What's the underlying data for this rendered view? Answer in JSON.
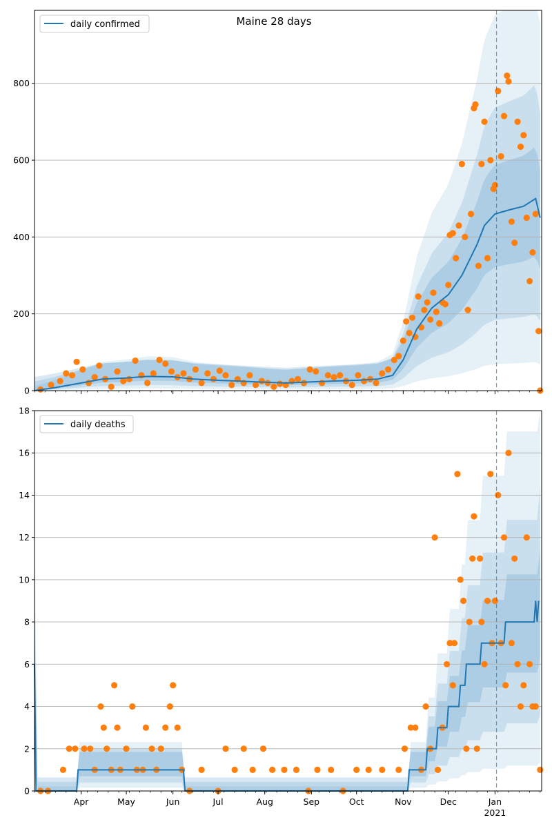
{
  "chart_data": [
    {
      "type": "line",
      "title": "Maine 28 days",
      "legend": {
        "label": "daily confirmed",
        "position": "top-left"
      },
      "ylim": [
        0,
        990
      ],
      "yticks": [
        0,
        200,
        400,
        600,
        800
      ],
      "grid": "horizontal",
      "vline_date": "2021-01-02",
      "series": [
        {
          "name": "daily confirmed",
          "kind": "line",
          "points": [
            [
              "2020-03-01",
              0
            ],
            [
              "2020-03-15",
              8
            ],
            [
              "2020-04-01",
              20
            ],
            [
              "2020-04-15",
              30
            ],
            [
              "2020-05-01",
              33
            ],
            [
              "2020-05-15",
              37
            ],
            [
              "2020-06-01",
              36
            ],
            [
              "2020-06-15",
              30
            ],
            [
              "2020-07-01",
              27
            ],
            [
              "2020-07-15",
              25
            ],
            [
              "2020-08-01",
              22
            ],
            [
              "2020-08-15",
              20
            ],
            [
              "2020-09-01",
              23
            ],
            [
              "2020-09-15",
              25
            ],
            [
              "2020-10-01",
              27
            ],
            [
              "2020-10-15",
              30
            ],
            [
              "2020-10-25",
              40
            ],
            [
              "2020-11-01",
              80
            ],
            [
              "2020-11-10",
              160
            ],
            [
              "2020-11-20",
              215
            ],
            [
              "2020-12-01",
              250
            ],
            [
              "2020-12-10",
              300
            ],
            [
              "2020-12-20",
              380
            ],
            [
              "2020-12-25",
              430
            ],
            [
              "2021-01-01",
              460
            ],
            [
              "2021-01-10",
              470
            ],
            [
              "2021-01-20",
              480
            ],
            [
              "2021-01-28",
              500
            ],
            [
              "2021-01-31",
              450
            ]
          ]
        }
      ],
      "scatter": [
        [
          "2020-03-05",
          3
        ],
        [
          "2020-03-12",
          15
        ],
        [
          "2020-03-18",
          25
        ],
        [
          "2020-03-22",
          45
        ],
        [
          "2020-03-26",
          40
        ],
        [
          "2020-03-29",
          75
        ],
        [
          "2020-04-02",
          55
        ],
        [
          "2020-04-06",
          20
        ],
        [
          "2020-04-10",
          35
        ],
        [
          "2020-04-13",
          65
        ],
        [
          "2020-04-17",
          30
        ],
        [
          "2020-04-21",
          10
        ],
        [
          "2020-04-25",
          50
        ],
        [
          "2020-04-29",
          25
        ],
        [
          "2020-05-03",
          30
        ],
        [
          "2020-05-07",
          78
        ],
        [
          "2020-05-11",
          40
        ],
        [
          "2020-05-15",
          20
        ],
        [
          "2020-05-19",
          45
        ],
        [
          "2020-05-23",
          80
        ],
        [
          "2020-05-27",
          70
        ],
        [
          "2020-05-31",
          50
        ],
        [
          "2020-06-04",
          35
        ],
        [
          "2020-06-08",
          45
        ],
        [
          "2020-06-12",
          30
        ],
        [
          "2020-06-16",
          55
        ],
        [
          "2020-06-20",
          20
        ],
        [
          "2020-06-24",
          45
        ],
        [
          "2020-06-28",
          30
        ],
        [
          "2020-07-02",
          52
        ],
        [
          "2020-07-06",
          40
        ],
        [
          "2020-07-10",
          15
        ],
        [
          "2020-07-14",
          30
        ],
        [
          "2020-07-18",
          20
        ],
        [
          "2020-07-22",
          40
        ],
        [
          "2020-07-26",
          15
        ],
        [
          "2020-07-30",
          25
        ],
        [
          "2020-08-03",
          20
        ],
        [
          "2020-08-07",
          10
        ],
        [
          "2020-08-11",
          18
        ],
        [
          "2020-08-15",
          15
        ],
        [
          "2020-08-19",
          25
        ],
        [
          "2020-08-23",
          30
        ],
        [
          "2020-08-27",
          20
        ],
        [
          "2020-08-31",
          55
        ],
        [
          "2020-09-04",
          50
        ],
        [
          "2020-09-08",
          20
        ],
        [
          "2020-09-12",
          40
        ],
        [
          "2020-09-16",
          35
        ],
        [
          "2020-09-20",
          40
        ],
        [
          "2020-09-24",
          25
        ],
        [
          "2020-09-28",
          15
        ],
        [
          "2020-10-02",
          40
        ],
        [
          "2020-10-06",
          25
        ],
        [
          "2020-10-10",
          30
        ],
        [
          "2020-10-14",
          20
        ],
        [
          "2020-10-18",
          45
        ],
        [
          "2020-10-22",
          55
        ],
        [
          "2020-10-26",
          80
        ],
        [
          "2020-10-29",
          90
        ],
        [
          "2020-11-01",
          130
        ],
        [
          "2020-11-03",
          180
        ],
        [
          "2020-11-05",
          150
        ],
        [
          "2020-11-07",
          190
        ],
        [
          "2020-11-09",
          140
        ],
        [
          "2020-11-11",
          245
        ],
        [
          "2020-11-13",
          165
        ],
        [
          "2020-11-15",
          210
        ],
        [
          "2020-11-17",
          230
        ],
        [
          "2020-11-19",
          185
        ],
        [
          "2020-11-21",
          255
        ],
        [
          "2020-11-23",
          205
        ],
        [
          "2020-11-25",
          175
        ],
        [
          "2020-11-27",
          230
        ],
        [
          "2020-11-29",
          225
        ],
        [
          "2020-12-01",
          275
        ],
        [
          "2020-12-02",
          405
        ],
        [
          "2020-12-04",
          410
        ],
        [
          "2020-12-06",
          345
        ],
        [
          "2020-12-08",
          430
        ],
        [
          "2020-12-10",
          590
        ],
        [
          "2020-12-12",
          400
        ],
        [
          "2020-12-14",
          210
        ],
        [
          "2020-12-16",
          460
        ],
        [
          "2020-12-18",
          735
        ],
        [
          "2020-12-19",
          745
        ],
        [
          "2020-12-21",
          325
        ],
        [
          "2020-12-23",
          590
        ],
        [
          "2020-12-25",
          700
        ],
        [
          "2020-12-27",
          345
        ],
        [
          "2020-12-29",
          600
        ],
        [
          "2020-12-31",
          525
        ],
        [
          "2021-01-01",
          535
        ],
        [
          "2021-01-03",
          780
        ],
        [
          "2021-01-05",
          610
        ],
        [
          "2021-01-07",
          715
        ],
        [
          "2021-01-09",
          820
        ],
        [
          "2021-01-10",
          805
        ],
        [
          "2021-01-12",
          440
        ],
        [
          "2021-01-14",
          385
        ],
        [
          "2021-01-16",
          700
        ],
        [
          "2021-01-18",
          635
        ],
        [
          "2021-01-20",
          665
        ],
        [
          "2021-01-22",
          450
        ],
        [
          "2021-01-24",
          285
        ],
        [
          "2021-01-26",
          360
        ],
        [
          "2021-01-28",
          460
        ],
        [
          "2021-01-30",
          155
        ],
        [
          "2021-01-31",
          0
        ]
      ]
    },
    {
      "type": "line",
      "legend": {
        "label": "daily deaths",
        "position": "top-left"
      },
      "ylim": [
        0,
        18
      ],
      "yticks": [
        0,
        2,
        4,
        6,
        8,
        10,
        12,
        14,
        16,
        18
      ],
      "grid": "horizontal",
      "vline_date": "2021-01-02",
      "series": [
        {
          "name": "daily deaths",
          "kind": "step",
          "points": [
            [
              "2020-03-01",
              6
            ],
            [
              "2020-03-02",
              0
            ],
            [
              "2020-03-29",
              0
            ],
            [
              "2020-03-30",
              1
            ],
            [
              "2020-06-08",
              1
            ],
            [
              "2020-06-09",
              0
            ],
            [
              "2020-11-04",
              0
            ],
            [
              "2020-11-05",
              1
            ],
            [
              "2020-11-16",
              1
            ],
            [
              "2020-11-17",
              2
            ],
            [
              "2020-11-23",
              2
            ],
            [
              "2020-11-24",
              3
            ],
            [
              "2020-11-30",
              3
            ],
            [
              "2020-12-01",
              4
            ],
            [
              "2020-12-08",
              4
            ],
            [
              "2020-12-09",
              5
            ],
            [
              "2020-12-12",
              5
            ],
            [
              "2020-12-13",
              6
            ],
            [
              "2020-12-22",
              6
            ],
            [
              "2020-12-23",
              7
            ],
            [
              "2021-01-07",
              7
            ],
            [
              "2021-01-08",
              8
            ],
            [
              "2021-01-27",
              8
            ],
            [
              "2021-01-28",
              9
            ],
            [
              "2021-01-29",
              8
            ],
            [
              "2021-01-30",
              9
            ]
          ]
        }
      ],
      "scatter": [
        [
          "2020-03-05",
          0
        ],
        [
          "2020-03-10",
          0
        ],
        [
          "2020-03-20",
          1
        ],
        [
          "2020-03-24",
          2
        ],
        [
          "2020-03-28",
          2
        ],
        [
          "2020-04-03",
          2
        ],
        [
          "2020-04-07",
          2
        ],
        [
          "2020-04-10",
          1
        ],
        [
          "2020-04-14",
          4
        ],
        [
          "2020-04-16",
          3
        ],
        [
          "2020-04-18",
          2
        ],
        [
          "2020-04-21",
          1
        ],
        [
          "2020-04-23",
          5
        ],
        [
          "2020-04-25",
          3
        ],
        [
          "2020-04-27",
          1
        ],
        [
          "2020-05-01",
          2
        ],
        [
          "2020-05-05",
          4
        ],
        [
          "2020-05-08",
          1
        ],
        [
          "2020-05-12",
          1
        ],
        [
          "2020-05-14",
          3
        ],
        [
          "2020-05-18",
          2
        ],
        [
          "2020-05-21",
          1
        ],
        [
          "2020-05-24",
          2
        ],
        [
          "2020-05-27",
          3
        ],
        [
          "2020-05-30",
          4
        ],
        [
          "2020-06-01",
          5
        ],
        [
          "2020-06-04",
          3
        ],
        [
          "2020-06-07",
          1
        ],
        [
          "2020-06-12",
          0
        ],
        [
          "2020-06-20",
          1
        ],
        [
          "2020-07-01",
          0
        ],
        [
          "2020-07-06",
          2
        ],
        [
          "2020-07-12",
          1
        ],
        [
          "2020-07-18",
          2
        ],
        [
          "2020-07-24",
          1
        ],
        [
          "2020-07-31",
          2
        ],
        [
          "2020-08-06",
          1
        ],
        [
          "2020-08-14",
          1
        ],
        [
          "2020-08-22",
          1
        ],
        [
          "2020-08-30",
          0
        ],
        [
          "2020-09-05",
          1
        ],
        [
          "2020-09-14",
          1
        ],
        [
          "2020-09-22",
          0
        ],
        [
          "2020-10-01",
          1
        ],
        [
          "2020-10-09",
          1
        ],
        [
          "2020-10-18",
          1
        ],
        [
          "2020-10-29",
          1
        ],
        [
          "2020-11-02",
          2
        ],
        [
          "2020-11-06",
          3
        ],
        [
          "2020-11-09",
          3
        ],
        [
          "2020-11-13",
          1
        ],
        [
          "2020-11-16",
          4
        ],
        [
          "2020-11-19",
          2
        ],
        [
          "2020-11-22",
          12
        ],
        [
          "2020-11-24",
          1
        ],
        [
          "2020-11-27",
          3
        ],
        [
          "2020-11-30",
          6
        ],
        [
          "2020-12-02",
          7
        ],
        [
          "2020-12-04",
          5
        ],
        [
          "2020-12-05",
          7
        ],
        [
          "2020-12-07",
          15
        ],
        [
          "2020-12-09",
          10
        ],
        [
          "2020-12-11",
          9
        ],
        [
          "2020-12-13",
          2
        ],
        [
          "2020-12-15",
          8
        ],
        [
          "2020-12-17",
          11
        ],
        [
          "2020-12-18",
          13
        ],
        [
          "2020-12-20",
          2
        ],
        [
          "2020-12-22",
          11
        ],
        [
          "2020-12-23",
          8
        ],
        [
          "2020-12-25",
          6
        ],
        [
          "2020-12-27",
          9
        ],
        [
          "2020-12-29",
          15
        ],
        [
          "2020-12-30",
          7
        ],
        [
          "2021-01-01",
          9
        ],
        [
          "2021-01-03",
          14
        ],
        [
          "2021-01-05",
          7
        ],
        [
          "2021-01-07",
          12
        ],
        [
          "2021-01-08",
          5
        ],
        [
          "2021-01-10",
          16
        ],
        [
          "2021-01-12",
          7
        ],
        [
          "2021-01-14",
          11
        ],
        [
          "2021-01-16",
          6
        ],
        [
          "2021-01-18",
          4
        ],
        [
          "2021-01-20",
          5
        ],
        [
          "2021-01-22",
          12
        ],
        [
          "2021-01-24",
          6
        ],
        [
          "2021-01-26",
          4
        ],
        [
          "2021-01-28",
          4
        ],
        [
          "2021-01-31",
          1
        ]
      ]
    }
  ],
  "x_axis": {
    "start": "2020-03-01",
    "end": "2021-02-01",
    "ticks": [
      {
        "label": "Apr",
        "date": "2020-04-01"
      },
      {
        "label": "May",
        "date": "2020-05-01"
      },
      {
        "label": "Jun",
        "date": "2020-06-01"
      },
      {
        "label": "Jul",
        "date": "2020-07-01"
      },
      {
        "label": "Aug",
        "date": "2020-08-01"
      },
      {
        "label": "Sep",
        "date": "2020-09-01"
      },
      {
        "label": "Oct",
        "date": "2020-10-01"
      },
      {
        "label": "Nov",
        "date": "2020-11-01"
      },
      {
        "label": "Dec",
        "date": "2020-12-01"
      },
      {
        "label": "Jan",
        "date": "2021-01-01"
      }
    ],
    "year_label": "2021"
  },
  "colors": {
    "line": "#1f77b4",
    "points": "#ff7f0e",
    "band": "#1f77b4",
    "grid": "#b0b0b0"
  }
}
